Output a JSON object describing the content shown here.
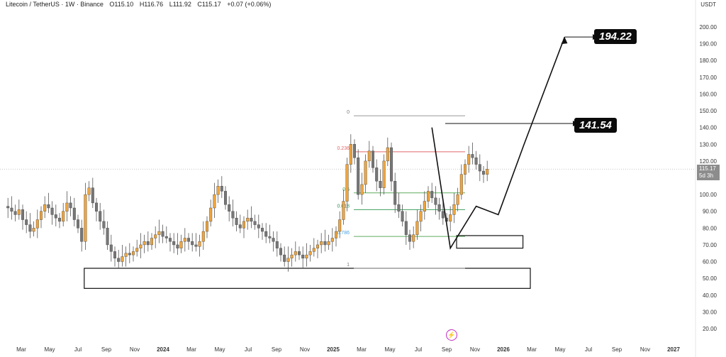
{
  "header": {
    "symbol": "Litecoin / TetherUS · 1W · Binance",
    "open": "O115.10",
    "high": "H116.76",
    "low": "L111.92",
    "close": "C115.17",
    "change": "+0.07 (+0.06%)"
  },
  "price_axis_unit": "USDT",
  "current_price_label": "115.17",
  "countdown_label": "5d 3h",
  "targets": {
    "upper": "194.22",
    "lower": "141.54"
  },
  "colors": {
    "up": "#f0a43a",
    "down": "#777777",
    "fib_red": "#e06666",
    "fib_green": "#5fae5f"
  },
  "chart_data": {
    "type": "candlestick",
    "title": "",
    "xlabel": "",
    "ylabel": "",
    "ylim": [
      14,
      214
    ],
    "y_ticks": [
      "20.00",
      "30.00",
      "40.00",
      "50.00",
      "60.00",
      "70.00",
      "80.00",
      "90.00",
      "100.00",
      "110.00",
      "120.00",
      "130.00",
      "140.00",
      "150.00",
      "160.00",
      "170.00",
      "180.00",
      "190.00",
      "200.00"
    ],
    "x_ticks": [
      "Mar",
      "May",
      "Jul",
      "Sep",
      "Nov",
      "2024",
      "Mar",
      "May",
      "Jul",
      "Sep",
      "Nov",
      "2025",
      "Mar",
      "May",
      "Jul",
      "Sep",
      "Nov",
      "2026",
      "Mar",
      "May",
      "Jul",
      "Sep",
      "Nov",
      "2027"
    ],
    "close_series": [
      93,
      92,
      90,
      88,
      91,
      85,
      82,
      78,
      80,
      85,
      90,
      94,
      92,
      88,
      86,
      84,
      90,
      95,
      92,
      85,
      80,
      72,
      100,
      104,
      95,
      90,
      84,
      80,
      70,
      66,
      62,
      60,
      63,
      65,
      64,
      66,
      68,
      70,
      72,
      70,
      74,
      76,
      78,
      75,
      74,
      72,
      70,
      68,
      72,
      74,
      72,
      70,
      69,
      72,
      78,
      84,
      92,
      100,
      105,
      102,
      94,
      90,
      86,
      82,
      80,
      84,
      86,
      84,
      82,
      80,
      78,
      75,
      74,
      72,
      68,
      64,
      60,
      62,
      64,
      66,
      64,
      62,
      64,
      66,
      68,
      70,
      72,
      70,
      72,
      74,
      78,
      85,
      96,
      118,
      130,
      122,
      100,
      106,
      120,
      126,
      116,
      108,
      104,
      120,
      128,
      108,
      94,
      90,
      84,
      76,
      72,
      76,
      84,
      90,
      96,
      102,
      98,
      94,
      90,
      86,
      84,
      88,
      94,
      100,
      112,
      118,
      124,
      122,
      118,
      114,
      112,
      115.17
    ],
    "fib_levels": [
      {
        "label": "0",
        "value": 147
      },
      {
        "label": "0.236",
        "value": 125.5
      },
      {
        "label": "0.5",
        "value": 101
      },
      {
        "label": "0.618",
        "value": 91
      },
      {
        "label": "0.786",
        "value": 75
      },
      {
        "label": "1",
        "value": 56
      }
    ],
    "zones": [
      {
        "from": 44,
        "to": 56,
        "start_candle": 14,
        "end_candle": 160
      },
      {
        "from": 68,
        "to": 75.5,
        "start_candle": 115,
        "end_candle": 158
      }
    ],
    "targets": [
      194.22,
      141.54
    ],
    "projection_path": [
      [
        116,
        140
      ],
      [
        121,
        68
      ],
      [
        128,
        93
      ],
      [
        134,
        88
      ],
      [
        141,
        130
      ],
      [
        152,
        194
      ]
    ]
  }
}
